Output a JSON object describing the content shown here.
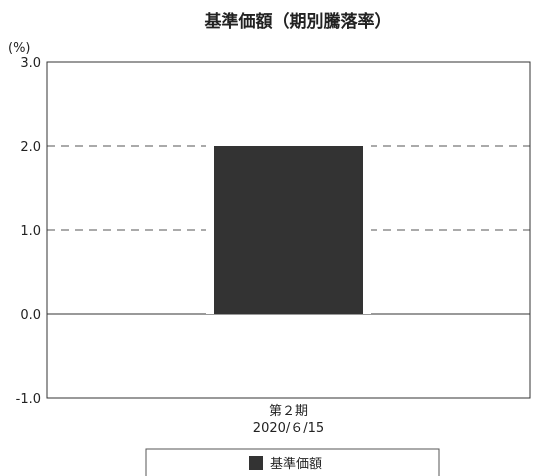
{
  "chart_data": {
    "type": "bar",
    "title": "基準価額（期別騰落率）",
    "unit_label": "(%)",
    "categories": [
      {
        "line1": "第２期",
        "line2": "2020/６/15"
      }
    ],
    "series": [
      {
        "name": "基準価額",
        "values": [
          2.0
        ],
        "color": "#333333"
      }
    ],
    "ylim": [
      -1.0,
      3.0
    ],
    "yticks": [
      -1.0,
      0.0,
      1.0,
      2.0,
      3.0
    ],
    "ytick_labels": [
      "-1.0",
      "0.0",
      "1.0",
      "2.0",
      "3.0"
    ],
    "grid": "dashed at 1.0 and 2.0",
    "legend": "bottom-center"
  }
}
